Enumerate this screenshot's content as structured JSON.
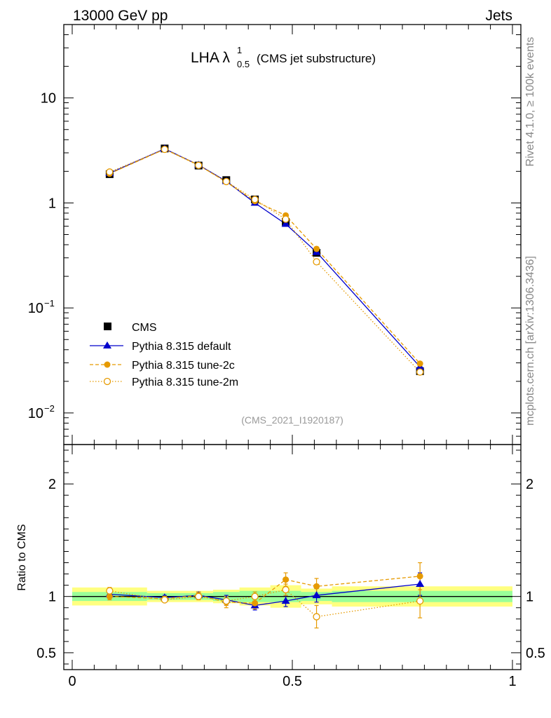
{
  "header": {
    "left": "13000 GeV pp",
    "right": "Jets"
  },
  "side_right_top": "Rivet 4.1.0, ≥ 100k events",
  "side_right_bottom": "mcplots.cern.ch [arXiv:1306.3436]",
  "colors": {
    "cms": "#000000",
    "default": "#0000cc",
    "tune2c": "#e69a00",
    "tune2m": "#e69a00",
    "band_stat": "#99ff99",
    "band_sys": "#ffff80"
  },
  "chart_data": {
    "type": "line",
    "title": {
      "main": "LHA λ",
      "sup": "1",
      "sub": "0.5",
      "note": "(CMS jet substructure)"
    },
    "analysis": "(CMS_2021_I1920187)",
    "xlim": [
      0,
      1
    ],
    "x_ticks": [
      {
        "v": 0,
        "label": "0"
      },
      {
        "v": 0.5,
        "label": "0.5"
      },
      {
        "v": 1,
        "label": "1"
      }
    ],
    "main_ylim": [
      0.005,
      50
    ],
    "main_y_ticks": [
      {
        "v": 10,
        "base": "10",
        "exp": ""
      },
      {
        "v": 1,
        "base": "1",
        "exp": ""
      },
      {
        "v": 0.1,
        "base": "10",
        "exp": "−1"
      },
      {
        "v": 0.01,
        "base": "10",
        "exp": "−2"
      }
    ],
    "ratio_ylim": [
      0.35,
      2.35
    ],
    "ratio_ylabel": "Ratio to CMS",
    "ratio_y_ticks": [
      {
        "v": 2,
        "label": "2"
      },
      {
        "v": 1,
        "label": "1"
      },
      {
        "v": 0.5,
        "label": "0.5"
      }
    ],
    "x": [
      0.085,
      0.21,
      0.287,
      0.35,
      0.415,
      0.485,
      0.555,
      0.79
    ],
    "bin_edges": [
      0,
      0.17,
      0.25,
      0.32,
      0.38,
      0.45,
      0.52,
      0.59,
      1.0
    ],
    "band_sys": [
      0.08,
      0.05,
      0.05,
      0.06,
      0.08,
      0.1,
      0.07,
      0.09
    ],
    "band_stat": [
      0.04,
      0.03,
      0.03,
      0.04,
      0.05,
      0.05,
      0.04,
      0.05
    ],
    "series": [
      {
        "name": "CMS",
        "key": "cms",
        "values": [
          1.88,
          3.3,
          2.27,
          1.65,
          1.08,
          0.66,
          0.335,
          0.025
        ]
      },
      {
        "name": "Pythia 8.315 default",
        "key": "default",
        "values": [
          1.92,
          3.28,
          2.3,
          1.61,
          1.0,
          0.63,
          0.34,
          0.0275
        ],
        "ratio": [
          1.02,
          0.99,
          1.01,
          0.97,
          0.92,
          0.96,
          1.01,
          1.11
        ],
        "ratio_err": [
          0.03,
          0.02,
          0.03,
          0.04,
          0.04,
          0.05,
          0.06,
          0.1
        ]
      },
      {
        "name": "Pythia 8.315 tune-2c",
        "key": "tune2c",
        "values": [
          1.9,
          3.25,
          2.3,
          1.58,
          1.04,
          0.76,
          0.365,
          0.0295
        ],
        "ratio": [
          1.0,
          0.98,
          1.01,
          0.95,
          0.94,
          1.15,
          1.09,
          1.18
        ],
        "ratio_err": [
          0.03,
          0.02,
          0.03,
          0.05,
          0.05,
          0.06,
          0.07,
          0.12
        ]
      },
      {
        "name": "Pythia 8.315 tune-2m",
        "key": "tune2m",
        "values": [
          1.97,
          3.24,
          2.28,
          1.6,
          1.08,
          0.7,
          0.275,
          0.0245
        ],
        "ratio": [
          1.05,
          0.97,
          1.0,
          0.96,
          1.0,
          1.06,
          0.82,
          0.96
        ],
        "ratio_err": [
          0.03,
          0.02,
          0.03,
          0.04,
          0.04,
          0.05,
          0.1,
          0.15
        ]
      }
    ]
  }
}
